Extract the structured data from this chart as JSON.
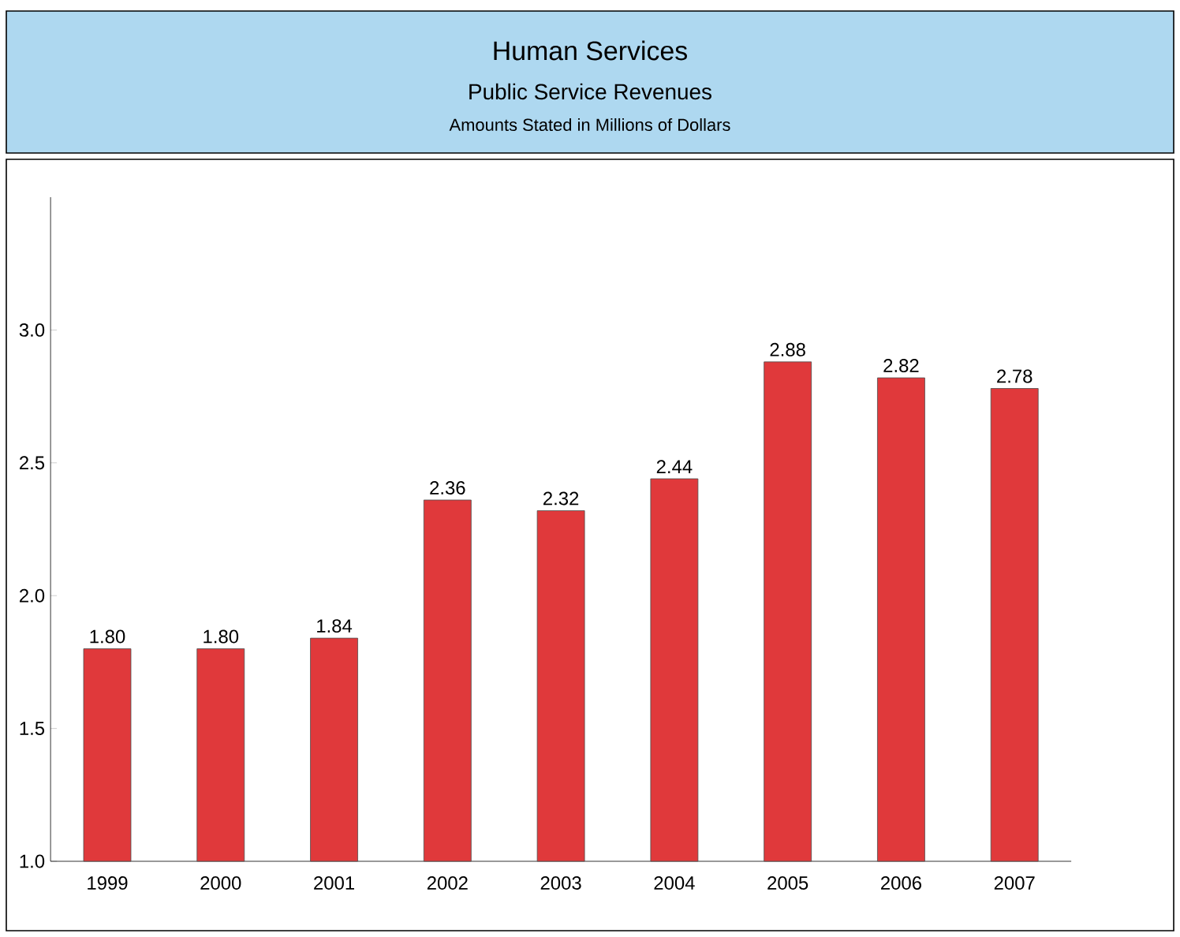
{
  "chart_data": {
    "type": "bar",
    "title": "Human Services",
    "subtitle": "Public Service Revenues",
    "annotations": [
      "Amounts Stated in Millions of Dollars"
    ],
    "categories": [
      "1999",
      "2000",
      "2001",
      "2002",
      "2003",
      "2004",
      "2005",
      "2006",
      "2007"
    ],
    "values": [
      1.8,
      1.8,
      1.84,
      2.36,
      2.32,
      2.44,
      2.88,
      2.82,
      2.78
    ],
    "value_labels": [
      "1.80",
      "1.80",
      "1.84",
      "2.36",
      "2.32",
      "2.44",
      "2.88",
      "2.82",
      "2.78"
    ],
    "color": "#e0393b",
    "ylim": [
      1.0,
      3.5
    ],
    "yticks": [
      {
        "value": 1.0,
        "label": "1.0"
      },
      {
        "value": 1.5,
        "label": "1.5"
      },
      {
        "value": 2.0,
        "label": "2.0"
      },
      {
        "value": 2.5,
        "label": "2.5"
      },
      {
        "value": 3.0,
        "label": "3.0"
      }
    ],
    "grid": false
  }
}
